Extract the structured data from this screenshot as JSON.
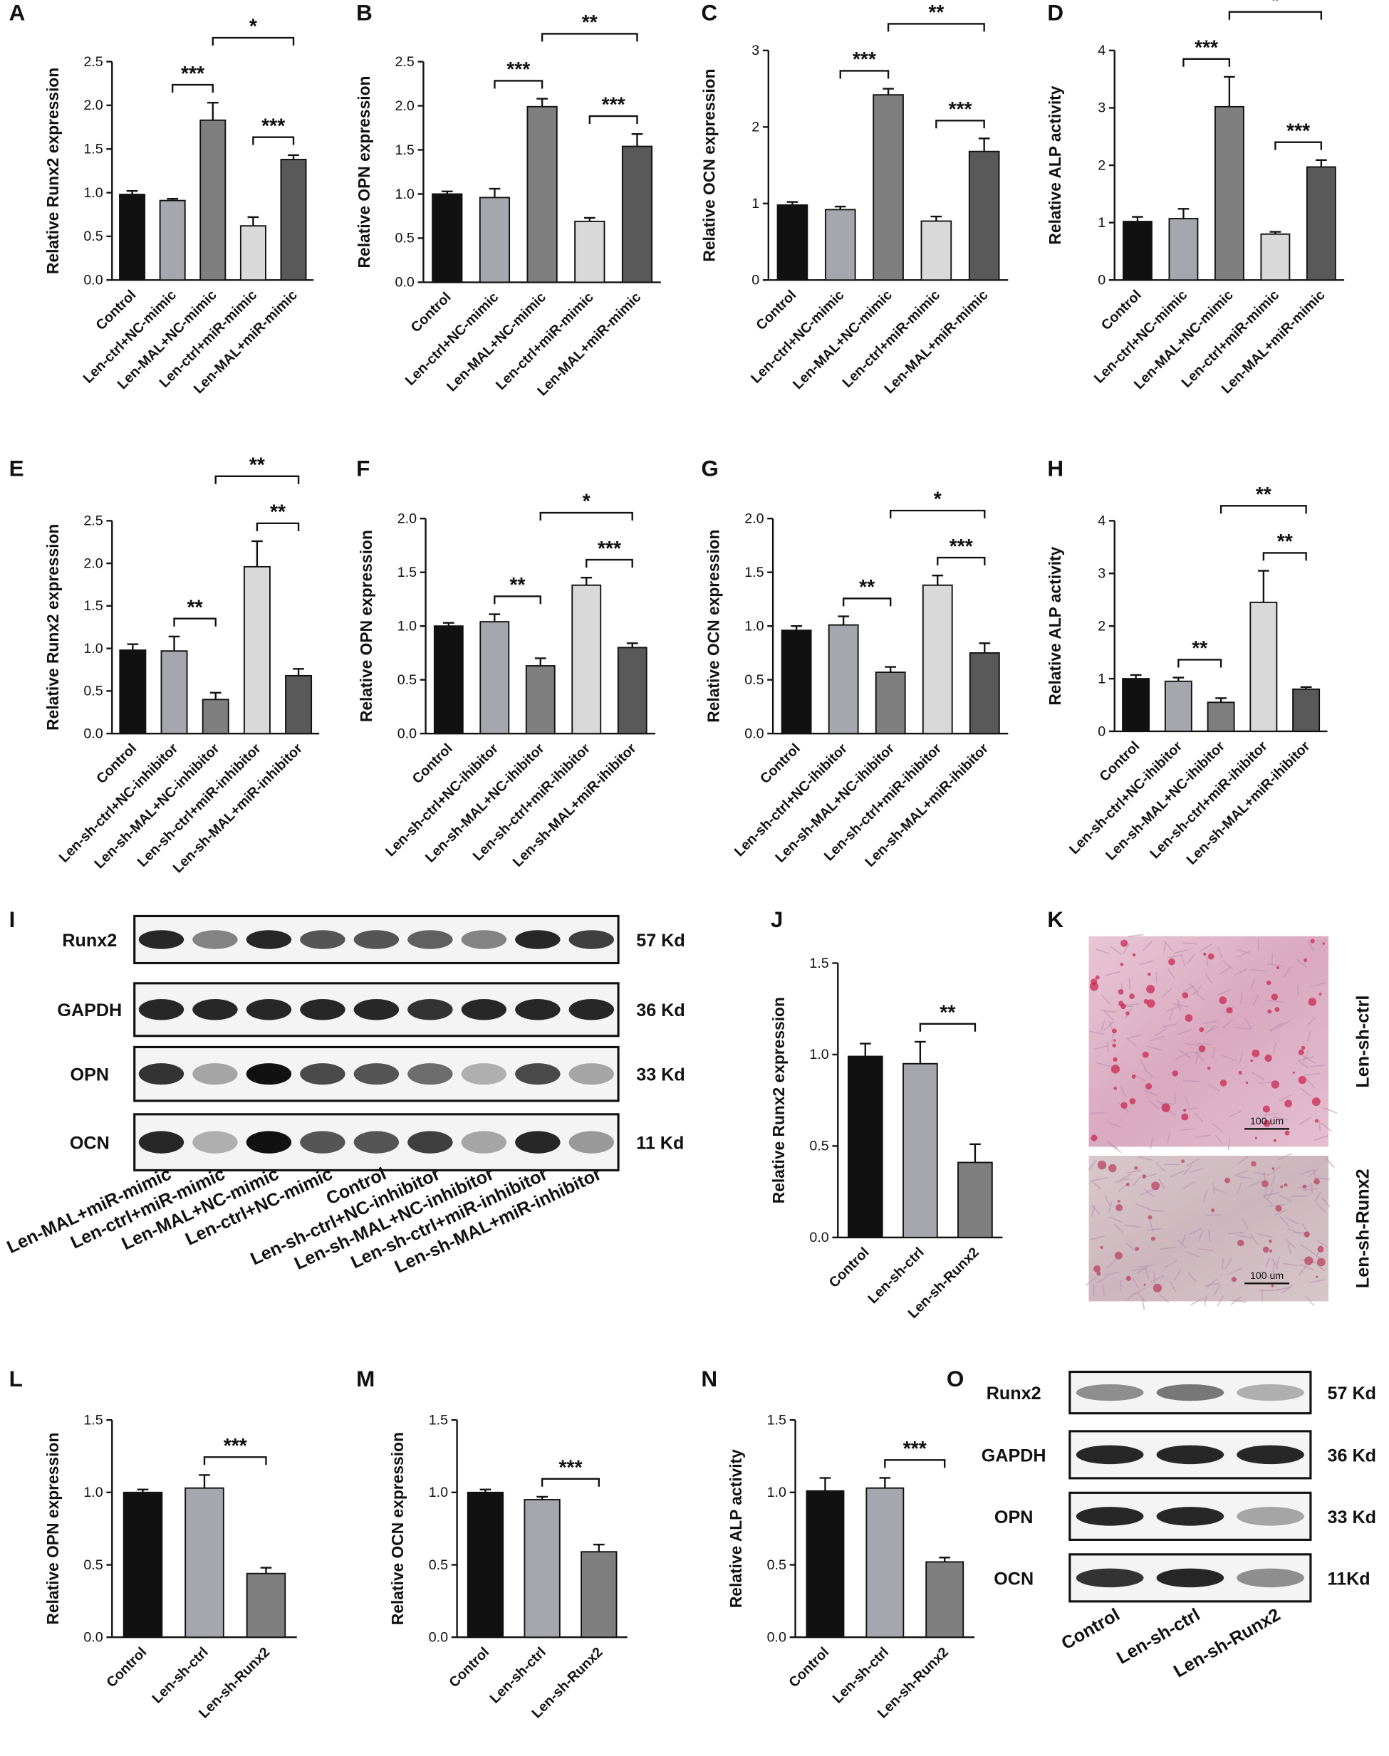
{
  "chart_data": [
    {
      "type": "bar",
      "panel": "A",
      "ylabel": "Relative Runx2 expression",
      "categories": [
        "Control",
        "Len-ctrl+NC-mimic",
        "Len-MAL+NC-mimic",
        "Len-ctrl+miR-mimic",
        "Len-MAL+miR-mimic"
      ],
      "values": [
        0.98,
        0.91,
        1.83,
        0.62,
        1.38
      ],
      "errors": [
        0.04,
        0.02,
        0.2,
        0.1,
        0.05
      ],
      "colors": [
        "#111111",
        "#a6a6ae",
        "#7f7f7f",
        "#d9d9d9",
        "#595959"
      ],
      "ylim": [
        0,
        2.5
      ],
      "yticks": [
        {
          "value": 0,
          "label": "0.0"
        },
        0.5,
        {
          "value": 1,
          "label": "1.0"
        },
        1.5,
        {
          "value": 2,
          "label": "2.0"
        },
        2.5
      ],
      "annotations": [
        {
          "text": "***",
          "between": [
            1,
            2
          ]
        },
        {
          "text": "*",
          "between": [
            2,
            4
          ]
        },
        {
          "text": "***",
          "between": [
            3,
            4
          ]
        }
      ]
    },
    {
      "type": "bar",
      "panel": "B",
      "ylabel": "Relative OPN expression",
      "categories": [
        "Control",
        "Len-ctrl+NC-mimic",
        "Len-MAL+NC-mimic",
        "Len-ctrl+miR-mimic",
        "Len-MAL+miR-mimic"
      ],
      "values": [
        1.0,
        0.96,
        1.99,
        0.69,
        1.54
      ],
      "errors": [
        0.03,
        0.1,
        0.09,
        0.04,
        0.14
      ],
      "colors": [
        "#111111",
        "#a6a6ae",
        "#7f7f7f",
        "#d9d9d9",
        "#595959"
      ],
      "ylim": [
        0,
        2.5
      ],
      "yticks": [
        {
          "value": 0,
          "label": "0.0"
        },
        0.5,
        {
          "value": 1,
          "label": "1.0"
        },
        1.5,
        {
          "value": 2,
          "label": "2.0"
        },
        2.5
      ],
      "annotations": [
        {
          "text": "***",
          "between": [
            1,
            2
          ]
        },
        {
          "text": "**",
          "between": [
            2,
            4
          ]
        },
        {
          "text": "***",
          "between": [
            3,
            4
          ]
        }
      ]
    },
    {
      "type": "bar",
      "panel": "C",
      "ylabel": "Relative OCN expression",
      "categories": [
        "Control",
        "Len-ctrl+NC-mimic",
        "Len-MAL+NC-mimic",
        "Len-ctrl+miR-mimic",
        "Len-MAL+miR-mimic"
      ],
      "values": [
        0.98,
        0.92,
        2.42,
        0.77,
        1.68
      ],
      "errors": [
        0.04,
        0.04,
        0.08,
        0.06,
        0.17
      ],
      "colors": [
        "#111111",
        "#a6a6ae",
        "#7f7f7f",
        "#d9d9d9",
        "#595959"
      ],
      "ylim": [
        0,
        3
      ],
      "yticks": [
        0,
        1,
        2,
        3
      ],
      "annotations": [
        {
          "text": "***",
          "between": [
            1,
            2
          ]
        },
        {
          "text": "**",
          "between": [
            2,
            4
          ]
        },
        {
          "text": "***",
          "between": [
            3,
            4
          ]
        }
      ]
    },
    {
      "type": "bar",
      "panel": "D",
      "ylabel": "Relative ALP activity",
      "categories": [
        "Control",
        "Len-ctrl+NC-mimic",
        "Len-MAL+NC-mimic",
        "Len-ctrl+miR-mimic",
        "Len-MAL+miR-mimic"
      ],
      "values": [
        1.02,
        1.07,
        3.02,
        0.8,
        1.97
      ],
      "errors": [
        0.08,
        0.17,
        0.52,
        0.04,
        0.12
      ],
      "colors": [
        "#111111",
        "#a6a6ae",
        "#7f7f7f",
        "#d9d9d9",
        "#595959"
      ],
      "ylim": [
        0,
        4
      ],
      "yticks": [
        0,
        1,
        2,
        3,
        4
      ],
      "annotations": [
        {
          "text": "***",
          "between": [
            1,
            2
          ]
        },
        {
          "text": "*",
          "between": [
            2,
            4
          ]
        },
        {
          "text": "***",
          "between": [
            3,
            4
          ]
        }
      ]
    },
    {
      "type": "bar",
      "panel": "E",
      "ylabel": "Relative Runx2 expression",
      "categories": [
        "Control",
        "Len-sh-ctrl+NC-inhibitor",
        "Len-sh-MAL+NC-inhibitor",
        "Len-sh-ctrl+miR-inhibitor",
        "Len-sh-MAL+miR-inhibitor"
      ],
      "values": [
        0.98,
        0.97,
        0.4,
        1.96,
        0.68
      ],
      "errors": [
        0.07,
        0.17,
        0.08,
        0.3,
        0.08
      ],
      "colors": [
        "#111111",
        "#a6a6ae",
        "#7f7f7f",
        "#d9d9d9",
        "#595959"
      ],
      "ylim": [
        0,
        2.5
      ],
      "yticks": [
        {
          "value": 0,
          "label": "0.0"
        },
        0.5,
        {
          "value": 1,
          "label": "1.0"
        },
        1.5,
        {
          "value": 2,
          "label": "2.0"
        },
        2.5
      ],
      "annotations": [
        {
          "text": "**",
          "between": [
            1,
            2
          ]
        },
        {
          "text": "**",
          "between": [
            2,
            4
          ]
        },
        {
          "text": "**",
          "between": [
            3,
            4
          ]
        }
      ]
    },
    {
      "type": "bar",
      "panel": "F",
      "ylabel": "Relative OPN expression",
      "categories": [
        "Control",
        "Len-sh-ctrl+NC-ihibitor",
        "Len-sh-MAL+NC-ihibitor",
        "Len-sh-ctrl+miR-ihibitor",
        "Len-sh-MAL+miR-ihibitor"
      ],
      "values": [
        1.0,
        1.04,
        0.63,
        1.38,
        0.8
      ],
      "errors": [
        0.03,
        0.07,
        0.07,
        0.07,
        0.04
      ],
      "colors": [
        "#111111",
        "#a6a6ae",
        "#7f7f7f",
        "#d9d9d9",
        "#595959"
      ],
      "ylim": [
        0,
        2
      ],
      "yticks": [
        {
          "value": 0,
          "label": "0.0"
        },
        0.5,
        {
          "value": 1,
          "label": "1.0"
        },
        1.5,
        {
          "value": 2,
          "label": "2.0"
        }
      ],
      "annotations": [
        {
          "text": "**",
          "between": [
            1,
            2
          ]
        },
        {
          "text": "*",
          "between": [
            2,
            4
          ]
        },
        {
          "text": "***",
          "between": [
            3,
            4
          ]
        }
      ]
    },
    {
      "type": "bar",
      "panel": "G",
      "ylabel": "Relative OCN expression",
      "categories": [
        "Control",
        "Len-sh-ctrl+NC-ihibitor",
        "Len-sh-MAL+NC-ihibitor",
        "Len-sh-ctrl+miR-ihibitor",
        "Len-sh-MAL+miR-ihibitor"
      ],
      "values": [
        0.96,
        1.01,
        0.57,
        1.38,
        0.75
      ],
      "errors": [
        0.04,
        0.08,
        0.05,
        0.09,
        0.09
      ],
      "colors": [
        "#111111",
        "#a6a6ae",
        "#7f7f7f",
        "#d9d9d9",
        "#595959"
      ],
      "ylim": [
        0,
        2
      ],
      "yticks": [
        {
          "value": 0,
          "label": "0.0"
        },
        0.5,
        {
          "value": 1,
          "label": "1.0"
        },
        1.5,
        {
          "value": 2,
          "label": "2.0"
        }
      ],
      "annotations": [
        {
          "text": "**",
          "between": [
            1,
            2
          ]
        },
        {
          "text": "*",
          "between": [
            2,
            4
          ]
        },
        {
          "text": "***",
          "between": [
            3,
            4
          ]
        }
      ]
    },
    {
      "type": "bar",
      "panel": "H",
      "ylabel": "Relative ALP activity",
      "categories": [
        "Control",
        "Len-sh-ctrl+NC-ihibitor",
        "Len-sh-MAL+NC-ihibitor",
        "Len-sh-ctrl+miR-ihibitor",
        "Len-sh-MAL+miR-ihibitor"
      ],
      "values": [
        1.0,
        0.95,
        0.55,
        2.45,
        0.8
      ],
      "errors": [
        0.07,
        0.07,
        0.08,
        0.6,
        0.04
      ],
      "colors": [
        "#111111",
        "#a6a6ae",
        "#7f7f7f",
        "#d9d9d9",
        "#595959"
      ],
      "ylim": [
        0,
        4
      ],
      "yticks": [
        0,
        1,
        2,
        3,
        4
      ],
      "annotations": [
        {
          "text": "**",
          "between": [
            1,
            2
          ]
        },
        {
          "text": "**",
          "between": [
            2,
            4
          ]
        },
        {
          "text": "**",
          "between": [
            3,
            4
          ]
        }
      ]
    },
    {
      "type": "bar",
      "panel": "J",
      "ylabel": "Relative Runx2 expression",
      "categories": [
        "Control",
        "Len-sh-ctrl",
        "Len-sh-Runx2"
      ],
      "values": [
        0.99,
        0.95,
        0.41
      ],
      "errors": [
        0.07,
        0.12,
        0.1
      ],
      "colors": [
        "#111111",
        "#a6a6ae",
        "#7f7f7f"
      ],
      "ylim": [
        0,
        1.5
      ],
      "yticks": [
        {
          "value": 0,
          "label": "0.0"
        },
        0.5,
        {
          "value": 1,
          "label": "1.0"
        },
        1.5
      ],
      "annotations": [
        {
          "text": "**",
          "between": [
            1,
            2
          ]
        }
      ]
    },
    {
      "type": "bar",
      "panel": "L",
      "ylabel": "Relative OPN expression",
      "categories": [
        "Control",
        "Len-sh-ctrl",
        "Len-sh-Runx2"
      ],
      "values": [
        1.0,
        1.03,
        0.44
      ],
      "errors": [
        0.02,
        0.09,
        0.04
      ],
      "colors": [
        "#111111",
        "#a6a6ae",
        "#7f7f7f"
      ],
      "ylim": [
        0,
        1.5
      ],
      "yticks": [
        {
          "value": 0,
          "label": "0.0"
        },
        0.5,
        {
          "value": 1,
          "label": "1.0"
        },
        1.5
      ],
      "annotations": [
        {
          "text": "***",
          "between": [
            1,
            2
          ]
        }
      ]
    },
    {
      "type": "bar",
      "panel": "M",
      "ylabel": "Relative OCN expression",
      "categories": [
        "Control",
        "Len-sh-ctrl",
        "Len-sh-Runx2"
      ],
      "values": [
        1.0,
        0.95,
        0.59
      ],
      "errors": [
        0.02,
        0.02,
        0.05
      ],
      "colors": [
        "#111111",
        "#a6a6ae",
        "#7f7f7f"
      ],
      "ylim": [
        0,
        1.5
      ],
      "yticks": [
        {
          "value": 0,
          "label": "0.0"
        },
        0.5,
        {
          "value": 1,
          "label": "1.0"
        },
        1.5
      ],
      "annotations": [
        {
          "text": "***",
          "between": [
            1,
            2
          ]
        }
      ]
    },
    {
      "type": "bar",
      "panel": "N",
      "ylabel": "Relative ALP activity",
      "categories": [
        "Control",
        "Len-sh-ctrl",
        "Len-sh-Runx2"
      ],
      "values": [
        1.01,
        1.03,
        0.52
      ],
      "errors": [
        0.09,
        0.07,
        0.03
      ],
      "colors": [
        "#111111",
        "#a6a6ae",
        "#7f7f7f"
      ],
      "ylim": [
        0,
        1.5
      ],
      "yticks": [
        {
          "value": 0,
          "label": "0.0"
        },
        0.5,
        {
          "value": 1,
          "label": "1.0"
        },
        1.5
      ],
      "annotations": [
        {
          "text": "***",
          "between": [
            1,
            2
          ]
        }
      ]
    }
  ],
  "blots": [
    {
      "panel": "I",
      "rows": [
        {
          "protein": "Runx2",
          "size": "57 Kd"
        },
        {
          "protein": "GAPDH",
          "size": "36 Kd"
        },
        {
          "protein": "OPN",
          "size": "33 Kd"
        },
        {
          "protein": "OCN",
          "size": "11 Kd"
        }
      ],
      "lanes": [
        "Len-MAL+miR-mimic",
        "Len-ctrl+miR-mimic",
        "Len-MAL+NC-mimic",
        "Len-ctrl+NC-mimic",
        "Control",
        "Len-sh-ctrl+NC-inhibitor",
        "Len-sh-MAL+NC-inhibitor",
        "Len-sh-ctrl+miR-inhibitor",
        "Len-sh-MAL+miR-inhibitor"
      ]
    },
    {
      "panel": "O",
      "rows": [
        {
          "protein": "Runx2",
          "size": "57 Kd"
        },
        {
          "protein": "GAPDH",
          "size": "36 Kd"
        },
        {
          "protein": "OPN",
          "size": "33 Kd"
        },
        {
          "protein": "OCN",
          "size": "11Kd"
        }
      ],
      "lanes": [
        "Control",
        "Len-sh-ctrl",
        "Len-sh-Runx2"
      ]
    }
  ],
  "images": {
    "panel": "K",
    "items": [
      {
        "label": "Len-sh-ctrl",
        "scale": "100 um"
      },
      {
        "label": "Len-sh-Runx2",
        "scale": "100 um"
      }
    ]
  }
}
